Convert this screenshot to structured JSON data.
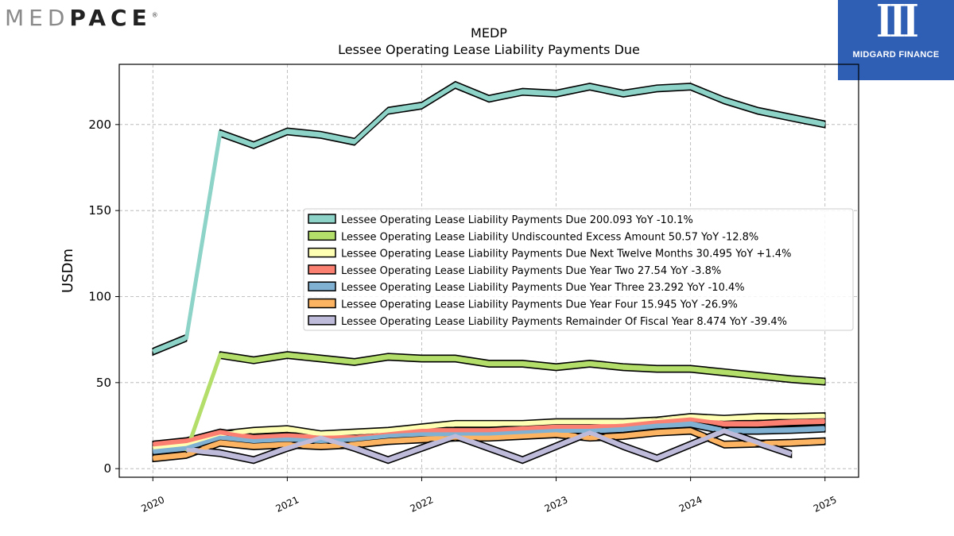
{
  "brand_left": {
    "light": "MED",
    "bold": "PACE",
    "mark": "®"
  },
  "brand_right": {
    "name": "MIDGARD FINANCE"
  },
  "chart_data": {
    "type": "area",
    "title": "MEDP",
    "subtitle": "Lessee Operating Lease Liability Payments Due",
    "xlabel": "",
    "ylabel": "USDm",
    "xlim": [
      2019.75,
      2025.25
    ],
    "ylim": [
      -5,
      235
    ],
    "x_ticks": [
      "2020",
      "2021",
      "2022",
      "2023",
      "2024",
      "2025"
    ],
    "y_ticks": [
      0,
      50,
      100,
      150,
      200
    ],
    "grid": true,
    "legend_position": "center-right",
    "series": [
      {
        "name": "Lessee Operating Lease Liability Payments Due",
        "legend": "Lessee Operating Lease Liability Payments Due  200.093 YoY -10.1%",
        "color": "#8dd3c7",
        "x": [
          2020,
          2020.25,
          2020.5,
          2020.75,
          2021,
          2021.25,
          2021.5,
          2021.75,
          2022,
          2022.25,
          2022.5,
          2022.75,
          2023,
          2023.25,
          2023.5,
          2023.75,
          2024,
          2024.25,
          2024.5,
          2024.75,
          2025
        ],
        "values": [
          68,
          76,
          195,
          188,
          196,
          194,
          190,
          208,
          211,
          223,
          215,
          219,
          218,
          222,
          218,
          221,
          222,
          214,
          208,
          204,
          200.093
        ]
      },
      {
        "name": "Lessee Operating Lease Liability Undiscounted Excess Amount",
        "legend": "Lessee Operating Lease Liability Undiscounted Excess Amount  50.57 YoY -12.8%",
        "color": "#b3de69",
        "x": [
          2020.25,
          2020.5,
          2020.75,
          2021,
          2021.25,
          2021.5,
          2021.75,
          2022,
          2022.25,
          2022.5,
          2022.75,
          2023,
          2023.25,
          2023.5,
          2023.75,
          2024,
          2024.25,
          2024.5,
          2024.75,
          2025
        ],
        "values": [
          10,
          66,
          63,
          66,
          64,
          62,
          65,
          64,
          64,
          61,
          61,
          59,
          61,
          59,
          58,
          58,
          56,
          54,
          52,
          50.57
        ]
      },
      {
        "name": "Lessee Operating Lease Liability Payments Due Next Twelve Months",
        "legend": "Lessee Operating Lease Liability Payments Due Next Twelve Months  30.495 YoY +1.4%",
        "color": "#ffffb3",
        "x": [
          2020,
          2020.25,
          2020.5,
          2020.75,
          2021,
          2021.25,
          2021.5,
          2021.75,
          2022,
          2022.25,
          2022.5,
          2022.75,
          2023,
          2023.25,
          2023.5,
          2023.75,
          2024,
          2024.25,
          2024.5,
          2024.75,
          2025
        ],
        "values": [
          12,
          14,
          20,
          22,
          23,
          20,
          21,
          22,
          24,
          26,
          26,
          26,
          27,
          27,
          27,
          28,
          30,
          29,
          30,
          30,
          30.495
        ]
      },
      {
        "name": "Lessee Operating Lease Liability Payments Due Year Two",
        "legend": "Lessee Operating Lease Liability Payments Due Year Two  27.54 YoY -3.8%",
        "color": "#fb8072",
        "x": [
          2020,
          2020.25,
          2020.5,
          2020.75,
          2021,
          2021.25,
          2021.5,
          2021.75,
          2022,
          2022.25,
          2022.5,
          2022.75,
          2023,
          2023.25,
          2023.5,
          2023.75,
          2024,
          2024.25,
          2024.5,
          2024.75,
          2025
        ],
        "values": [
          14,
          16,
          21,
          18,
          19,
          18,
          18,
          20,
          22,
          22,
          22,
          23,
          24,
          24,
          25,
          27,
          28.6,
          26,
          26,
          27,
          27.54
        ]
      },
      {
        "name": "Lessee Operating Lease Liability Payments Due Year Three",
        "legend": "Lessee Operating Lease Liability Payments Due Year Three  23.292 YoY -10.4%",
        "color": "#80b1d3",
        "x": [
          2020,
          2020.25,
          2020.5,
          2020.75,
          2021,
          2021.25,
          2021.5,
          2021.75,
          2022,
          2022.25,
          2022.5,
          2022.75,
          2023,
          2023.25,
          2023.5,
          2023.75,
          2024,
          2024.25,
          2024.5,
          2024.75,
          2025
        ],
        "values": [
          10,
          12,
          18,
          16,
          17,
          16,
          17,
          19,
          20,
          20,
          20,
          21,
          22,
          22,
          23,
          25,
          26,
          22,
          22,
          22.5,
          23.292
        ]
      },
      {
        "name": "Lessee Operating Lease Liability Payments Due Year Four",
        "legend": "Lessee Operating Lease Liability Payments Due Year Four  15.945 YoY -26.9%",
        "color": "#fdb462",
        "x": [
          2020,
          2020.25,
          2020.5,
          2020.75,
          2021,
          2021.25,
          2021.5,
          2021.75,
          2022,
          2022.25,
          2022.5,
          2022.75,
          2023,
          2023.25,
          2023.5,
          2023.75,
          2024,
          2024.25,
          2024.5,
          2024.75,
          2025
        ],
        "values": [
          6,
          8,
          15,
          13,
          14,
          13,
          14,
          16,
          17,
          18,
          18,
          19,
          20,
          18,
          19,
          21,
          22,
          14,
          14.5,
          15,
          15.945
        ]
      },
      {
        "name": "Lessee Operating Lease Liability Payments Remainder Of Fiscal Year",
        "legend": "Lessee Operating Lease Liability Payments Remainder Of Fiscal Year  8.474 YoY -39.4%",
        "color": "#bebada",
        "x": [
          2020.25,
          2020.5,
          2020.75,
          2021,
          2021.25,
          2021.5,
          2021.75,
          2022,
          2022.25,
          2022.5,
          2022.75,
          2023,
          2023.25,
          2023.5,
          2023.75,
          2024,
          2024.25,
          2024.5,
          2024.75
        ],
        "values": [
          11,
          9,
          5,
          12,
          18,
          12,
          5,
          12,
          19,
          12,
          5,
          13,
          21,
          13,
          6,
          14,
          22,
          15,
          8.474
        ]
      }
    ]
  }
}
